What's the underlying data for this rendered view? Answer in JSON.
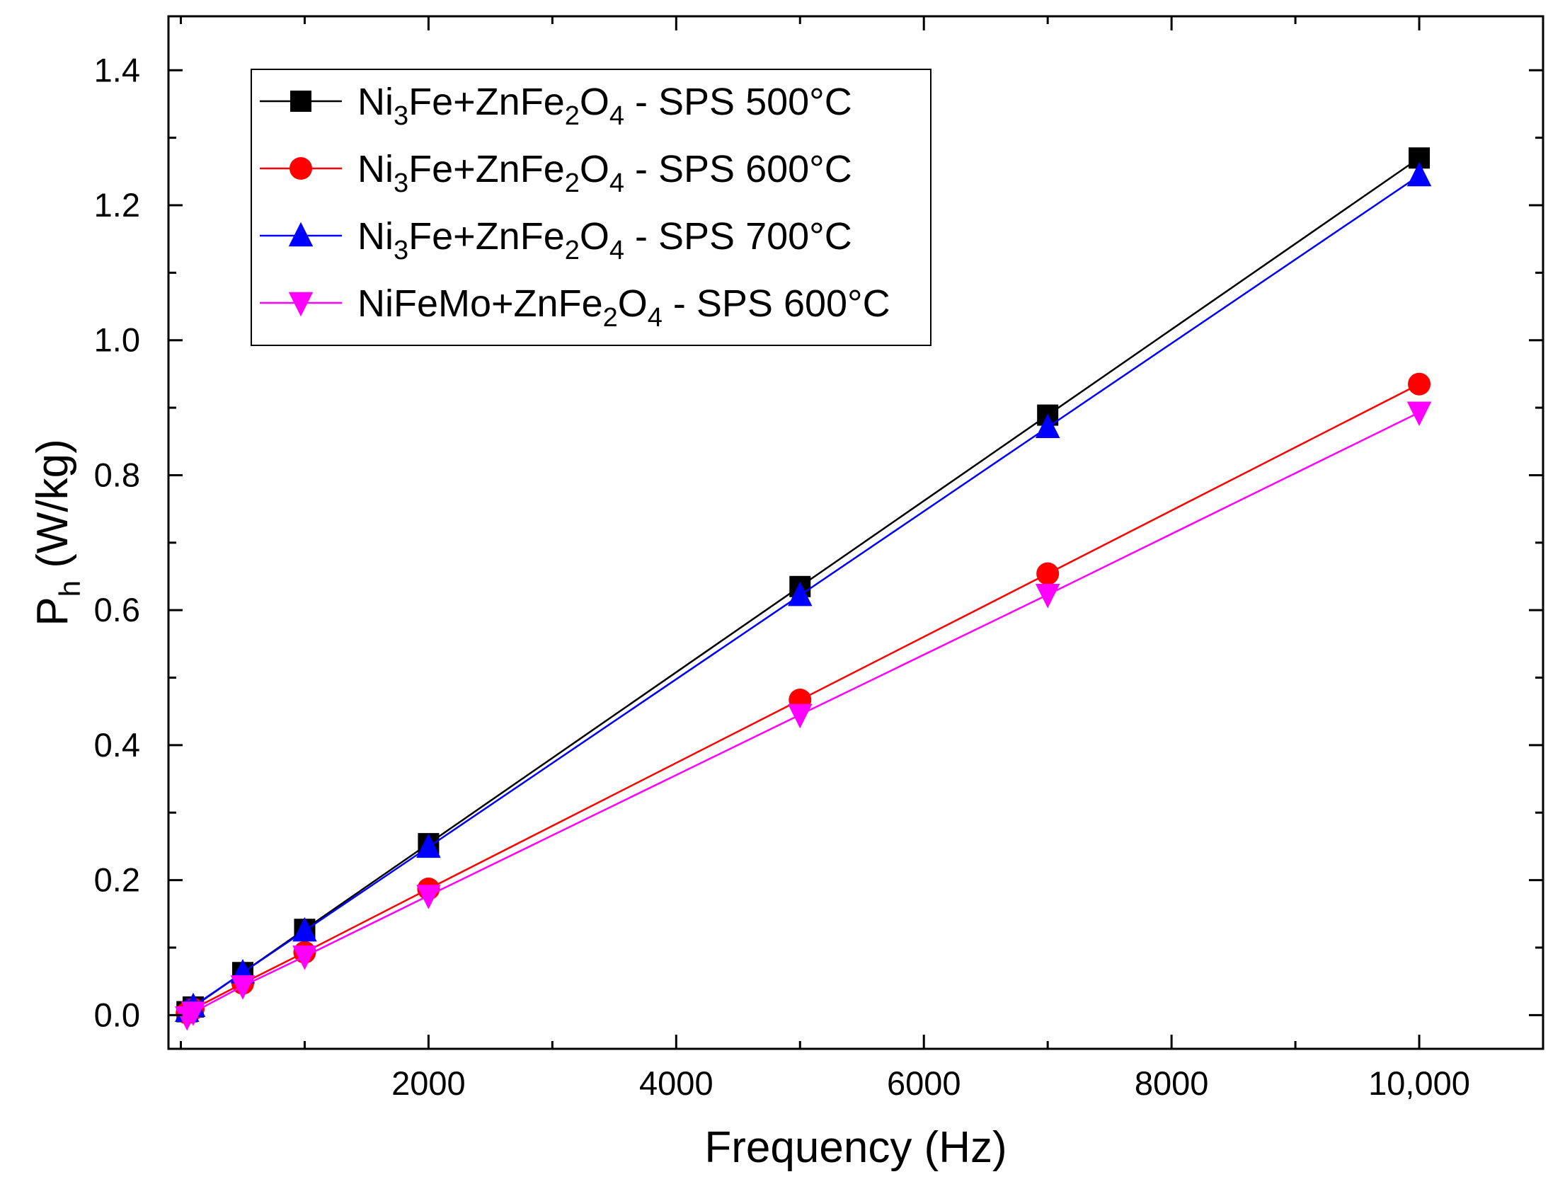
{
  "chart_data": {
    "type": "line",
    "title": "",
    "xlabel": "Frequency (Hz)",
    "ylabel": {
      "main": "P",
      "sub": "h",
      "rest": " (W/kg)"
    },
    "xlim": [
      -100,
      11000
    ],
    "ylim": [
      -0.05,
      1.48
    ],
    "x_ticks": [
      {
        "value": 2000,
        "label": "2000"
      },
      {
        "value": 4000,
        "label": "4000"
      },
      {
        "value": 6000,
        "label": "6000"
      },
      {
        "value": 8000,
        "label": "8000"
      },
      {
        "value": 10000,
        "label": "10,000"
      }
    ],
    "x_minor_ticks": [
      0,
      1000,
      3000,
      5000,
      7000,
      9000,
      11000
    ],
    "y_ticks": [
      {
        "value": 0.0,
        "label": "0.0"
      },
      {
        "value": 0.2,
        "label": "0.2"
      },
      {
        "value": 0.4,
        "label": "0.4"
      },
      {
        "value": 0.6,
        "label": "0.6"
      },
      {
        "value": 0.8,
        "label": "0.8"
      },
      {
        "value": 1.0,
        "label": "1.0"
      },
      {
        "value": 1.2,
        "label": "1.2"
      },
      {
        "value": 1.4,
        "label": "1.4"
      }
    ],
    "y_minor_ticks": [
      0.1,
      0.3,
      0.5,
      0.7,
      0.9,
      1.1,
      1.3
    ],
    "grid": false,
    "legend_position": "top-left",
    "x": [
      50,
      100,
      500,
      1000,
      2000,
      5000,
      7000,
      10000
    ],
    "series": [
      {
        "name": "Ni3Fe+ZnFe2O4 - SPS 500°C",
        "label_parts": [
          [
            "Ni",
            ""
          ],
          [
            "3",
            "sub"
          ],
          [
            "Fe+ZnFe",
            ""
          ],
          [
            "2",
            "sub"
          ],
          [
            "O",
            ""
          ],
          [
            "4",
            "sub"
          ],
          [
            " - SPS 500°C",
            ""
          ]
        ],
        "color": "#000000",
        "marker": "square",
        "values": [
          0.005,
          0.012,
          0.063,
          0.127,
          0.254,
          0.635,
          0.889,
          1.27
        ]
      },
      {
        "name": "Ni3Fe+ZnFe2O4 - SPS 600°C",
        "label_parts": [
          [
            "Ni",
            ""
          ],
          [
            "3",
            "sub"
          ],
          [
            "Fe+ZnFe",
            ""
          ],
          [
            "2",
            "sub"
          ],
          [
            "O",
            ""
          ],
          [
            "4",
            "sub"
          ],
          [
            " - SPS 600°C",
            ""
          ]
        ],
        "color": "#ff0000",
        "marker": "circle",
        "values": [
          0.003,
          0.009,
          0.047,
          0.093,
          0.187,
          0.467,
          0.654,
          0.935
        ]
      },
      {
        "name": "Ni3Fe+ZnFe2O4 - SPS 700°C",
        "label_parts": [
          [
            "Ni",
            ""
          ],
          [
            "3",
            "sub"
          ],
          [
            "Fe+ZnFe",
            ""
          ],
          [
            "2",
            "sub"
          ],
          [
            "O",
            ""
          ],
          [
            "4",
            "sub"
          ],
          [
            " - SPS 700°C",
            ""
          ]
        ],
        "color": "#0000ff",
        "marker": "triangle-up",
        "values": [
          0.006,
          0.013,
          0.063,
          0.125,
          0.249,
          0.622,
          0.871,
          1.244
        ]
      },
      {
        "name": "NiFeMo+ZnFe2O4 - SPS 600°C",
        "label_parts": [
          [
            "NiFeMo+ZnFe",
            ""
          ],
          [
            "2",
            "sub"
          ],
          [
            "O",
            ""
          ],
          [
            "4",
            "sub"
          ],
          [
            " - SPS 600°C",
            ""
          ]
        ],
        "color": "#ff00ff",
        "marker": "triangle-down",
        "values": [
          -0.003,
          0.004,
          0.043,
          0.087,
          0.177,
          0.445,
          0.623,
          0.893
        ]
      }
    ]
  }
}
